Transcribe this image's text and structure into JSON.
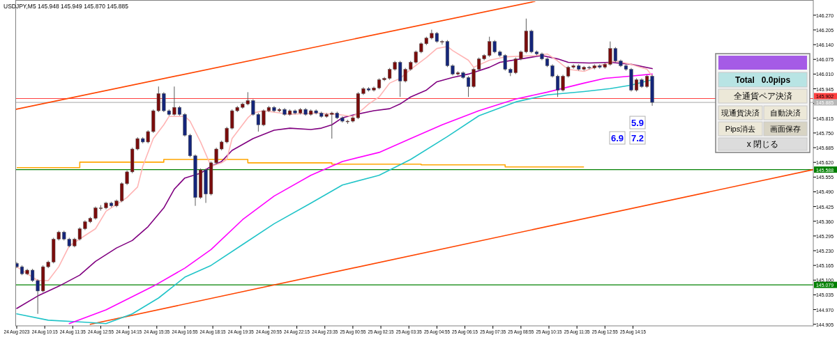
{
  "chart_data": [
    {
      "type": "candlestick",
      "annotations": [
        "USDJPY,M5  145.948 145.949 145.870 145.885",
        "5.9",
        "6.9",
        "7.2"
      ],
      "xlim": [
        "2023-08-24T08:51",
        "2023-08-25T22:50"
      ],
      "ylim": [
        144.898,
        146.331
      ],
      "xticks": [
        {
          "value": "2023-08-24T08:55",
          "label": "24 Aug 2023"
        },
        {
          "value": "2023-08-24T10:15",
          "label": "24 Aug 10:15"
        },
        {
          "value": "2023-08-24T11:35",
          "label": "24 Aug 11:35"
        },
        {
          "value": "2023-08-24T12:55",
          "label": "24 Aug 12:55"
        },
        {
          "value": "2023-08-24T14:15",
          "label": "24 Aug 14:15"
        },
        {
          "value": "2023-08-24T15:35",
          "label": "24 Aug 15:35"
        },
        {
          "value": "2023-08-24T16:55",
          "label": "24 Aug 16:55"
        },
        {
          "value": "2023-08-24T18:15",
          "label": "24 Aug 18:15"
        },
        {
          "value": "2023-08-24T19:35",
          "label": "24 Aug 19:35"
        },
        {
          "value": "2023-08-24T20:55",
          "label": "24 Aug 20:55"
        },
        {
          "value": "2023-08-24T22:15",
          "label": "24 Aug 22:15"
        },
        {
          "value": "2023-08-24T23:35",
          "label": "24 Aug 23:35"
        },
        {
          "value": "2023-08-25T00:55",
          "label": "25 Aug 00:55"
        },
        {
          "value": "2023-08-25T02:15",
          "label": "25 Aug 02:15"
        },
        {
          "value": "2023-08-25T03:35",
          "label": "25 Aug 03:35"
        },
        {
          "value": "2023-08-25T04:55",
          "label": "25 Aug 04:55"
        },
        {
          "value": "2023-08-25T06:15",
          "label": "25 Aug 06:15"
        },
        {
          "value": "2023-08-25T07:35",
          "label": "25 Aug 07:35"
        },
        {
          "value": "2023-08-25T08:55",
          "label": "25 Aug 08:55"
        },
        {
          "value": "2023-08-25T10:15",
          "label": "25 Aug 10:15"
        },
        {
          "value": "2023-08-25T11:35",
          "label": "25 Aug 11:35"
        },
        {
          "value": "2023-08-25T12:55",
          "label": "25 Aug 12:55"
        },
        {
          "value": "2023-08-25T14:15",
          "label": "25 Aug 14:15"
        }
      ],
      "yticks": [
        {
          "value": 144.905,
          "label": "144.905"
        },
        {
          "value": 144.97,
          "label": "144.970"
        },
        {
          "value": 145.035,
          "label": "145.035"
        },
        {
          "value": 145.1,
          "label": "145.100"
        },
        {
          "value": 145.165,
          "label": "145.165"
        },
        {
          "value": 145.23,
          "label": "145.230"
        },
        {
          "value": 145.295,
          "label": "145.295"
        },
        {
          "value": 145.36,
          "label": "145.360"
        },
        {
          "value": 145.425,
          "label": "145.425"
        },
        {
          "value": 145.49,
          "label": "145.490"
        },
        {
          "value": 145.555,
          "label": "145.555"
        },
        {
          "value": 145.62,
          "label": "145.620"
        },
        {
          "value": 145.685,
          "label": "145.685"
        },
        {
          "value": 145.75,
          "label": "145.750"
        },
        {
          "value": 145.815,
          "label": "145.815"
        },
        {
          "value": 145.88,
          "label": null
        },
        {
          "value": 145.945,
          "label": "145.945"
        },
        {
          "value": 146.01,
          "label": "146.010"
        },
        {
          "value": 146.075,
          "label": "146.075"
        },
        {
          "value": 146.14,
          "label": "146.140"
        },
        {
          "value": 146.205,
          "label": "146.205"
        },
        {
          "value": 146.27,
          "label": "146.270"
        }
      ],
      "ref_lines": [
        {
          "axis": "y",
          "value": 145.902,
          "label": "145.902",
          "color": "#ff4040"
        },
        {
          "axis": "y",
          "value": 145.885,
          "label": "145.885",
          "color": "#b8b8b8"
        },
        {
          "axis": "y",
          "value": 145.588,
          "label": "145.588",
          "color": "#008000"
        },
        {
          "axis": "y",
          "value": 145.079,
          "label": "145.079",
          "color": "#008000"
        }
      ],
      "series": [
        {
          "type": "line",
          "color": "#ff4500",
          "x": [
            "2023-08-24T08:51",
            "2023-08-25T09:35"
          ],
          "values": [
            145.854,
            146.331
          ]
        },
        {
          "type": "line",
          "color": "#ff4500",
          "x": [
            "2023-08-24T12:25",
            "2023-08-25T22:50"
          ],
          "values": [
            144.905,
            145.588
          ]
        },
        {
          "type": "step",
          "color": "#ffa500",
          "x": [
            "2023-08-24T08:55",
            "2023-08-24T11:55",
            "2023-08-24T15:55",
            "2023-08-24T19:55",
            "2023-08-24T23:55",
            "2023-08-25T04:10",
            "2023-08-25T08:10",
            "2023-08-25T11:55"
          ],
          "values": [
            145.597,
            145.621,
            145.633,
            145.618,
            145.612,
            145.609,
            145.6,
            145.6
          ]
        },
        {
          "type": "line",
          "color": "#20c4c8",
          "x": [
            "2023-08-24T08:55",
            "2023-08-24T10:25",
            "2023-08-24T12:10",
            "2023-08-24T13:10",
            "2023-08-24T14:25",
            "2023-08-24T15:40",
            "2023-08-24T16:55",
            "2023-08-24T18:10",
            "2023-08-24T19:40",
            "2023-08-24T21:10",
            "2023-08-24T22:55",
            "2023-08-25T00:25",
            "2023-08-25T02:10",
            "2023-08-25T03:40",
            "2023-08-25T05:25",
            "2023-08-25T06:55",
            "2023-08-25T08:40",
            "2023-08-25T10:10",
            "2023-08-25T11:55",
            "2023-08-25T13:10",
            "2023-08-25T14:10",
            "2023-08-25T15:10"
          ],
          "values": [
            144.951,
            144.923,
            144.914,
            144.908,
            144.951,
            145.021,
            145.113,
            145.165,
            145.257,
            145.349,
            145.44,
            145.52,
            145.563,
            145.633,
            145.734,
            145.826,
            145.887,
            145.918,
            145.933,
            145.946,
            145.961,
            145.985
          ]
        },
        {
          "type": "line",
          "color": "#ff00ff",
          "x": [
            "2023-08-24T11:25",
            "2023-08-24T13:10",
            "2023-08-24T15:25",
            "2023-08-24T16:55",
            "2023-08-24T18:10",
            "2023-08-24T19:40",
            "2023-08-24T21:10",
            "2023-08-24T22:55",
            "2023-08-25T00:25",
            "2023-08-25T02:10",
            "2023-08-25T03:40",
            "2023-08-25T05:10",
            "2023-08-25T06:55",
            "2023-08-25T08:40",
            "2023-08-25T10:10",
            "2023-08-25T11:55",
            "2023-08-25T12:55",
            "2023-08-25T14:10",
            "2023-08-25T15:10"
          ],
          "values": [
            144.908,
            144.969,
            145.073,
            145.153,
            145.235,
            145.367,
            145.471,
            145.563,
            145.624,
            145.664,
            145.725,
            145.786,
            145.848,
            145.9,
            145.93,
            145.97,
            145.991,
            146.001,
            146.01
          ]
        },
        {
          "type": "line",
          "color": "#800080",
          "x": [
            "2023-08-24T08:55",
            "2023-08-24T09:55",
            "2023-08-24T10:55",
            "2023-08-24T11:55",
            "2023-08-24T12:40",
            "2023-08-24T13:40",
            "2023-08-24T14:25",
            "2023-08-24T15:10",
            "2023-08-24T15:55",
            "2023-08-24T16:25",
            "2023-08-24T16:55",
            "2023-08-24T17:40",
            "2023-08-24T18:10",
            "2023-08-24T18:40",
            "2023-08-24T19:10",
            "2023-08-24T20:10",
            "2023-08-24T21:10",
            "2023-08-24T21:55",
            "2023-08-24T22:55",
            "2023-08-24T23:25",
            "2023-08-24T23:55",
            "2023-08-25T00:25",
            "2023-08-25T00:55",
            "2023-08-25T01:55",
            "2023-08-25T02:40",
            "2023-08-25T03:10",
            "2023-08-25T03:40",
            "2023-08-25T04:25",
            "2023-08-25T04:55",
            "2023-08-25T05:40",
            "2023-08-25T06:25",
            "2023-08-25T07:25",
            "2023-08-25T07:55",
            "2023-08-25T08:55",
            "2023-08-25T09:55",
            "2023-08-25T10:40",
            "2023-08-25T11:10",
            "2023-08-25T12:10",
            "2023-08-25T13:10",
            "2023-08-25T14:10",
            "2023-08-25T15:10"
          ],
          "values": [
            144.975,
            145.03,
            145.073,
            145.122,
            145.183,
            145.242,
            145.275,
            145.336,
            145.419,
            145.502,
            145.551,
            145.572,
            145.603,
            145.624,
            145.673,
            145.725,
            145.762,
            145.771,
            145.765,
            145.771,
            145.786,
            145.817,
            145.829,
            145.848,
            145.857,
            145.878,
            145.909,
            145.939,
            145.976,
            145.995,
            146.01,
            146.04,
            146.062,
            146.077,
            146.092,
            146.077,
            146.062,
            146.059,
            146.062,
            146.053,
            146.034
          ]
        },
        {
          "type": "line",
          "color": "#ffb4b4",
          "x": [
            "2023-08-24T08:55",
            "2023-08-24T09:55",
            "2023-08-24T10:25",
            "2023-08-24T10:55",
            "2023-08-24T11:25",
            "2023-08-24T12:10",
            "2023-08-24T12:40",
            "2023-08-24T13:10",
            "2023-08-24T13:40",
            "2023-08-24T14:10",
            "2023-08-24T14:40",
            "2023-08-24T14:55",
            "2023-08-24T15:25",
            "2023-08-24T15:55",
            "2023-08-24T16:10",
            "2023-08-24T16:55",
            "2023-08-24T17:10",
            "2023-08-24T17:40",
            "2023-08-24T18:10",
            "2023-08-24T18:40",
            "2023-08-24T18:55",
            "2023-08-24T19:10",
            "2023-08-24T19:55",
            "2023-08-24T20:10",
            "2023-08-24T20:40",
            "2023-08-24T21:55",
            "2023-08-24T23:10",
            "2023-08-25T00:10",
            "2023-08-25T00:55",
            "2023-08-25T01:10",
            "2023-08-25T01:25",
            "2023-08-25T01:40",
            "2023-08-25T02:10",
            "2023-08-25T02:40",
            "2023-08-25T03:10",
            "2023-08-25T03:40",
            "2023-08-25T04:25",
            "2023-08-25T04:55",
            "2023-08-25T05:25",
            "2023-08-25T05:40",
            "2023-08-25T06:25",
            "2023-08-25T06:40",
            "2023-08-25T07:25",
            "2023-08-25T08:10",
            "2023-08-25T09:40",
            "2023-08-25T10:10",
            "2023-08-25T10:40",
            "2023-08-25T11:10",
            "2023-08-25T11:55",
            "2023-08-25T12:25",
            "2023-08-25T13:25",
            "2023-08-25T14:10",
            "2023-08-25T14:55",
            "2023-08-25T15:10"
          ],
          "values": [
            145.159,
            145.098,
            145.098,
            145.159,
            145.251,
            145.297,
            145.327,
            145.404,
            145.434,
            145.465,
            145.511,
            145.603,
            145.725,
            145.786,
            145.823,
            145.823,
            145.802,
            145.71,
            145.603,
            145.618,
            145.633,
            145.725,
            145.817,
            145.838,
            145.848,
            145.832,
            145.838,
            145.832,
            145.823,
            145.838,
            145.857,
            145.878,
            145.909,
            145.97,
            145.991,
            146.031,
            146.083,
            146.123,
            146.132,
            146.114,
            146.071,
            146.04,
            146.071,
            146.086,
            146.092,
            146.099,
            146.068,
            146.031,
            146.022,
            146.04,
            146.068,
            146.053,
            146.031,
            146.001
          ]
        },
        {
          "type": "candlestick",
          "x": [
            "2023-08-24T08:55",
            "2023-08-24T09:10",
            "2023-08-24T09:25",
            "2023-08-24T09:40",
            "2023-08-24T09:55",
            "2023-08-24T10:10",
            "2023-08-24T10:25",
            "2023-08-24T10:40",
            "2023-08-24T10:55",
            "2023-08-24T11:10",
            "2023-08-24T11:25",
            "2023-08-24T11:40",
            "2023-08-24T11:55",
            "2023-08-24T12:10",
            "2023-08-24T12:25",
            "2023-08-24T12:40",
            "2023-08-24T12:55",
            "2023-08-24T13:10",
            "2023-08-24T13:25",
            "2023-08-24T13:40",
            "2023-08-24T13:55",
            "2023-08-24T14:10",
            "2023-08-24T14:25",
            "2023-08-24T14:40",
            "2023-08-24T14:55",
            "2023-08-24T15:10",
            "2023-08-24T15:25",
            "2023-08-24T15:40",
            "2023-08-24T15:55",
            "2023-08-24T16:10",
            "2023-08-24T16:25",
            "2023-08-24T16:40",
            "2023-08-24T16:55",
            "2023-08-24T17:10",
            "2023-08-24T17:25",
            "2023-08-24T17:40",
            "2023-08-24T17:55",
            "2023-08-24T18:10",
            "2023-08-24T18:25",
            "2023-08-24T18:40",
            "2023-08-24T18:55",
            "2023-08-24T19:10",
            "2023-08-24T19:25",
            "2023-08-24T19:40",
            "2023-08-24T19:55",
            "2023-08-24T20:10",
            "2023-08-24T20:25",
            "2023-08-24T20:40",
            "2023-08-24T20:55",
            "2023-08-24T21:10",
            "2023-08-24T21:25",
            "2023-08-24T21:40",
            "2023-08-24T21:55",
            "2023-08-24T22:10",
            "2023-08-24T22:25",
            "2023-08-24T22:40",
            "2023-08-24T22:55",
            "2023-08-24T23:10",
            "2023-08-24T23:25",
            "2023-08-24T23:40",
            "2023-08-24T23:55",
            "2023-08-25T00:10",
            "2023-08-25T00:25",
            "2023-08-25T00:40",
            "2023-08-25T00:55",
            "2023-08-25T01:10",
            "2023-08-25T01:25",
            "2023-08-25T01:40",
            "2023-08-25T01:55",
            "2023-08-25T02:10",
            "2023-08-25T02:25",
            "2023-08-25T02:40",
            "2023-08-25T02:55",
            "2023-08-25T03:10",
            "2023-08-25T03:25",
            "2023-08-25T03:40",
            "2023-08-25T03:55",
            "2023-08-25T04:10",
            "2023-08-25T04:25",
            "2023-08-25T04:40",
            "2023-08-25T04:55",
            "2023-08-25T05:10",
            "2023-08-25T05:25",
            "2023-08-25T05:40",
            "2023-08-25T05:55",
            "2023-08-25T06:10",
            "2023-08-25T06:25",
            "2023-08-25T06:40",
            "2023-08-25T06:55",
            "2023-08-25T07:10",
            "2023-08-25T07:25",
            "2023-08-25T07:40",
            "2023-08-25T07:55",
            "2023-08-25T08:10",
            "2023-08-25T08:25",
            "2023-08-25T08:40",
            "2023-08-25T08:55",
            "2023-08-25T09:10",
            "2023-08-25T09:25",
            "2023-08-25T09:40",
            "2023-08-25T09:55",
            "2023-08-25T10:10",
            "2023-08-25T10:25",
            "2023-08-25T10:40",
            "2023-08-25T10:55",
            "2023-08-25T11:10",
            "2023-08-25T11:25",
            "2023-08-25T11:40",
            "2023-08-25T11:55",
            "2023-08-25T12:10",
            "2023-08-25T12:25",
            "2023-08-25T12:40",
            "2023-08-25T12:55",
            "2023-08-25T13:10",
            "2023-08-25T13:25",
            "2023-08-25T13:40",
            "2023-08-25T13:55",
            "2023-08-25T14:10",
            "2023-08-25T14:25",
            "2023-08-25T14:40",
            "2023-08-25T14:55",
            "2023-08-25T15:10"
          ],
          "ohlc": [
            [
              145.174,
              145.18,
              145.153,
              145.159
            ],
            [
              145.159,
              145.165,
              145.122,
              145.128
            ],
            [
              145.128,
              145.15,
              145.122,
              145.144
            ],
            [
              145.144,
              145.15,
              145.092,
              145.098
            ],
            [
              145.098,
              145.104,
              144.951,
              145.052
            ],
            [
              145.052,
              145.165,
              145.046,
              145.159
            ],
            [
              145.159,
              145.186,
              145.153,
              145.18
            ],
            [
              145.18,
              145.287,
              145.174,
              145.281
            ],
            [
              145.281,
              145.318,
              145.275,
              145.312
            ],
            [
              145.312,
              145.318,
              145.275,
              145.281
            ],
            [
              145.281,
              145.287,
              145.245,
              145.251
            ],
            [
              145.251,
              145.287,
              145.245,
              145.281
            ],
            [
              145.281,
              145.333,
              145.275,
              145.327
            ],
            [
              145.327,
              145.364,
              145.321,
              145.358
            ],
            [
              145.358,
              145.379,
              145.352,
              145.373
            ],
            [
              145.373,
              145.425,
              145.367,
              145.419
            ],
            [
              145.419,
              145.431,
              145.407,
              145.419
            ],
            [
              145.419,
              145.446,
              145.413,
              145.44
            ],
            [
              145.44,
              145.446,
              145.422,
              145.428
            ],
            [
              145.428,
              145.456,
              145.422,
              145.45
            ],
            [
              145.45,
              145.532,
              145.444,
              145.526
            ],
            [
              145.526,
              145.584,
              145.52,
              145.578
            ],
            [
              145.578,
              145.685,
              145.572,
              145.679
            ],
            [
              145.679,
              145.731,
              145.673,
              145.725
            ],
            [
              145.725,
              145.731,
              145.704,
              145.71
            ],
            [
              145.71,
              145.762,
              145.704,
              145.756
            ],
            [
              145.756,
              145.854,
              145.75,
              145.848
            ],
            [
              145.848,
              145.955,
              145.842,
              145.924
            ],
            [
              145.924,
              145.93,
              145.842,
              145.848
            ],
            [
              145.848,
              145.854,
              145.826,
              145.832
            ],
            [
              145.832,
              145.955,
              145.826,
              145.863
            ],
            [
              145.863,
              145.869,
              145.826,
              145.832
            ],
            [
              145.832,
              145.838,
              145.734,
              145.74
            ],
            [
              145.74,
              145.746,
              145.643,
              145.649
            ],
            [
              145.649,
              145.655,
              145.428,
              145.465
            ],
            [
              145.465,
              145.593,
              145.459,
              145.587
            ],
            [
              145.587,
              145.593,
              145.441,
              145.48
            ],
            [
              145.48,
              145.624,
              145.474,
              145.618
            ],
            [
              145.618,
              145.685,
              145.612,
              145.679
            ],
            [
              145.679,
              145.716,
              145.673,
              145.71
            ],
            [
              145.71,
              145.777,
              145.704,
              145.771
            ],
            [
              145.771,
              145.854,
              145.765,
              145.848
            ],
            [
              145.848,
              145.869,
              145.842,
              145.863
            ],
            [
              145.863,
              145.884,
              145.857,
              145.878
            ],
            [
              145.878,
              145.93,
              145.872,
              145.893
            ],
            [
              145.893,
              145.899,
              145.826,
              145.832
            ],
            [
              145.832,
              145.838,
              145.756,
              145.786
            ],
            [
              145.786,
              145.854,
              145.78,
              145.848
            ],
            [
              145.848,
              145.869,
              145.842,
              145.863
            ],
            [
              145.863,
              145.869,
              145.842,
              145.848
            ],
            [
              145.848,
              145.86,
              145.842,
              145.854
            ],
            [
              145.854,
              145.86,
              145.826,
              145.832
            ],
            [
              145.832,
              145.854,
              145.826,
              145.848
            ],
            [
              145.848,
              145.854,
              145.832,
              145.838
            ],
            [
              145.838,
              145.86,
              145.832,
              145.854
            ],
            [
              145.854,
              145.86,
              145.826,
              145.832
            ],
            [
              145.832,
              145.854,
              145.826,
              145.848
            ],
            [
              145.848,
              145.854,
              145.832,
              145.838
            ],
            [
              145.838,
              145.844,
              145.817,
              145.823
            ],
            [
              145.823,
              145.838,
              145.817,
              145.832
            ],
            [
              145.832,
              145.844,
              145.725,
              145.838
            ],
            [
              145.838,
              145.844,
              145.811,
              145.817
            ],
            [
              145.817,
              145.823,
              145.796,
              145.802
            ],
            [
              145.802,
              145.808,
              145.79,
              145.802
            ],
            [
              145.802,
              145.823,
              145.796,
              145.817
            ],
            [
              145.817,
              145.93,
              145.811,
              145.924
            ],
            [
              145.924,
              145.952,
              145.918,
              145.946
            ],
            [
              145.946,
              145.952,
              145.933,
              145.939
            ],
            [
              145.939,
              145.955,
              145.933,
              145.949
            ],
            [
              145.949,
              145.991,
              145.943,
              145.985
            ],
            [
              145.985,
              145.997,
              145.979,
              145.991
            ],
            [
              145.991,
              146.037,
              145.985,
              146.031
            ],
            [
              146.031,
              146.068,
              146.025,
              146.062
            ],
            [
              146.062,
              146.068,
              145.909,
              145.979
            ],
            [
              145.979,
              146.037,
              145.973,
              146.031
            ],
            [
              146.031,
              146.068,
              146.025,
              146.062
            ],
            [
              146.062,
              146.114,
              146.056,
              146.108
            ],
            [
              146.108,
              146.15,
              146.102,
              146.144
            ],
            [
              146.144,
              146.175,
              146.138,
              146.169
            ],
            [
              146.169,
              146.206,
              146.163,
              146.19
            ],
            [
              146.19,
              146.196,
              146.148,
              146.154
            ],
            [
              146.154,
              146.16,
              146.14,
              146.154
            ],
            [
              146.154,
              146.16,
              146.041,
              146.047
            ],
            [
              146.047,
              146.053,
              146.004,
              146.01
            ],
            [
              146.01,
              146.022,
              146.004,
              146.016
            ],
            [
              146.016,
              146.022,
              145.989,
              145.995
            ],
            [
              145.995,
              146.001,
              145.909,
              145.955
            ],
            [
              145.955,
              146.037,
              145.949,
              146.031
            ],
            [
              146.031,
              146.083,
              146.025,
              146.077
            ],
            [
              146.077,
              146.098,
              146.071,
              146.092
            ],
            [
              146.092,
              146.175,
              146.086,
              146.154
            ],
            [
              146.154,
              146.16,
              146.102,
              146.108
            ],
            [
              146.108,
              146.114,
              146.086,
              146.092
            ],
            [
              146.092,
              146.098,
              146.025,
              146.031
            ],
            [
              146.031,
              146.037,
              146.001,
              146.016
            ],
            [
              146.016,
              146.083,
              146.01,
              146.077
            ],
            [
              146.077,
              146.114,
              146.071,
              146.108
            ],
            [
              146.108,
              146.255,
              146.102,
              146.2
            ],
            [
              146.2,
              146.206,
              146.102,
              146.108
            ],
            [
              146.108,
              146.114,
              146.093,
              146.099
            ],
            [
              146.099,
              146.105,
              146.071,
              146.077
            ],
            [
              146.077,
              146.083,
              146.041,
              146.047
            ],
            [
              146.047,
              146.053,
              145.995,
              146.001
            ],
            [
              146.001,
              146.007,
              145.909,
              145.939
            ],
            [
              145.939,
              146.007,
              145.933,
              146.001
            ],
            [
              146.001,
              146.046,
              145.995,
              146.04
            ],
            [
              146.04,
              146.053,
              146.034,
              146.047
            ],
            [
              146.047,
              146.053,
              146.025,
              146.031
            ],
            [
              146.031,
              146.046,
              146.025,
              146.04
            ],
            [
              146.04,
              146.046,
              146.031,
              146.037
            ],
            [
              146.037,
              146.053,
              146.031,
              146.047
            ],
            [
              146.047,
              146.053,
              146.034,
              146.04
            ],
            [
              146.04,
              146.059,
              146.034,
              146.053
            ],
            [
              146.053,
              146.154,
              146.047,
              146.123
            ],
            [
              146.123,
              146.129,
              146.062,
              146.068
            ],
            [
              146.068,
              146.074,
              146.041,
              146.047
            ],
            [
              146.047,
              146.053,
              146.025,
              146.031
            ],
            [
              146.031,
              146.037,
              145.933,
              145.939
            ],
            [
              145.939,
              145.991,
              145.933,
              145.985
            ],
            [
              145.985,
              145.991,
              145.949,
              145.955
            ],
            [
              145.955,
              146.007,
              145.949,
              146.001
            ],
            [
              146.001,
              146.007,
              145.87,
              145.885
            ]
          ]
        }
      ]
    },
    {
      "type": "other",
      "annotations": [
        "Total   0.0pips",
        "全通貨ペア決済",
        "現通貨決済",
        "自動決済",
        "Pips消去",
        "画面保存",
        "x 閉じる"
      ]
    }
  ]
}
